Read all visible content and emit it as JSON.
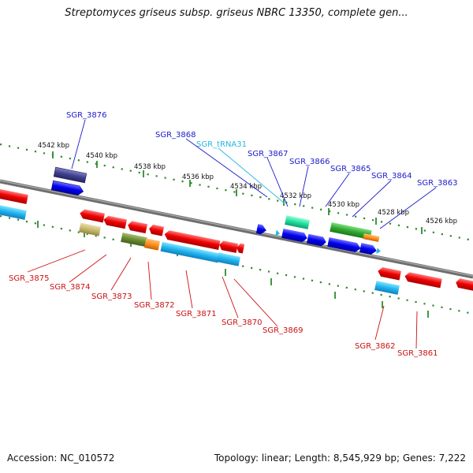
{
  "header": {
    "title": "Streptomyces griseus subsp. griseus NBRC 13350, complete gen..."
  },
  "footer": {
    "accession": "Accession: NC_010572",
    "summary": "Topology: linear; Length: 8,545,929 bp; Genes: 7,222"
  },
  "scale": {
    "ticks": [
      "4542 kbp",
      "4540 kbp",
      "4538 kbp",
      "4536 kbp",
      "4534 kbp",
      "4532 kbp",
      "4530 kbp",
      "4528 kbp",
      "4526 kbp"
    ]
  },
  "genes": {
    "top": [
      "SGR_3876",
      "SGR_3868",
      "SGR_tRNA31",
      "SGR_3867",
      "SGR_3866",
      "SGR_3865",
      "SGR_3864",
      "SGR_3863"
    ],
    "bottom": [
      "SGR_3875",
      "SGR_3874",
      "SGR_3873",
      "SGR_3872",
      "SGR_3871",
      "SGR_3870",
      "SGR_3869",
      "SGR_3862",
      "SGR_3861"
    ]
  },
  "colors": {
    "forward_label": "#1a1acc",
    "reverse_label": "#cc1111",
    "trna_label": "#22b8e0",
    "tick_green": "#2e8b2e",
    "backbone": "#808080"
  }
}
